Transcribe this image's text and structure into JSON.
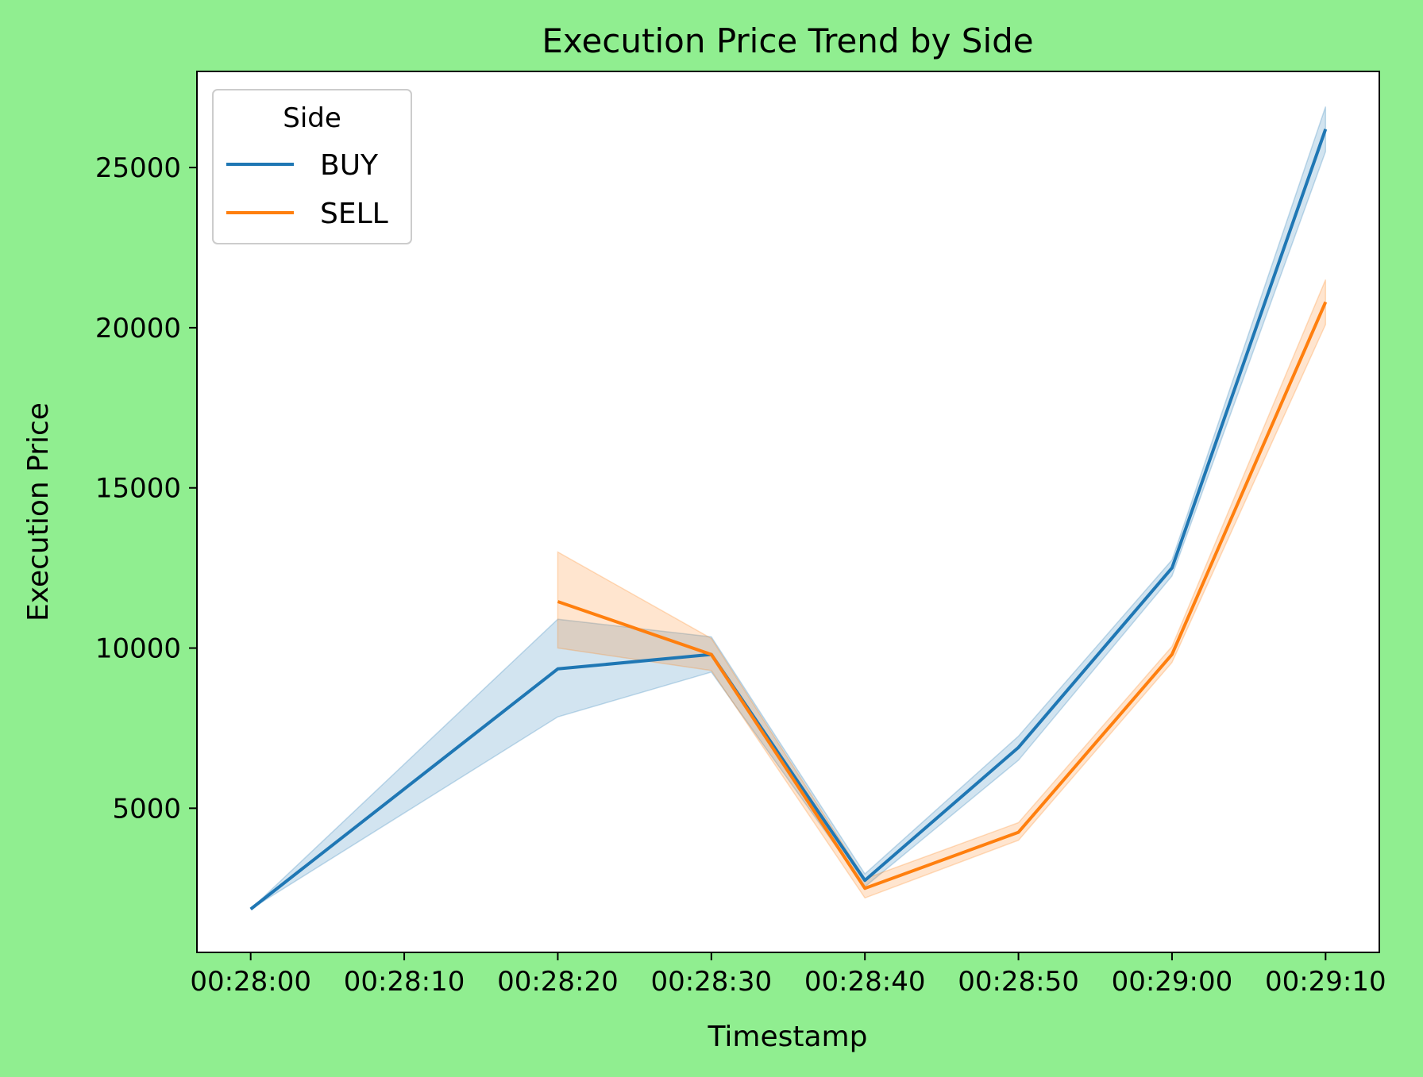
{
  "chart_data": {
    "type": "line",
    "title": "Execution Price Trend by Side",
    "xlabel": "Timestamp",
    "ylabel": "Execution Price",
    "x_ticks": [
      "00:28:00",
      "00:28:10",
      "00:28:20",
      "00:28:30",
      "00:28:40",
      "00:28:50",
      "00:29:00",
      "00:29:10"
    ],
    "y_ticks": [
      5000,
      10000,
      15000,
      20000,
      25000
    ],
    "xlim": [
      "00:27:56.5",
      "00:29:13.5"
    ],
    "ylim": [
      500,
      28000
    ],
    "grid": false,
    "legend": {
      "title": "Side",
      "position": "top-left"
    },
    "series": [
      {
        "name": "BUY",
        "color": "#1f77b4",
        "x": [
          "00:28:00",
          "00:28:20",
          "00:28:30",
          "00:28:40",
          "00:28:50",
          "00:29:00",
          "00:29:10"
        ],
        "y": [
          1850,
          9350,
          9800,
          2750,
          6900,
          12500,
          26200
        ],
        "ci_low": [
          1850,
          7850,
          9250,
          2550,
          6500,
          12250,
          25500
        ],
        "ci_high": [
          1850,
          10900,
          10350,
          2950,
          7250,
          12750,
          26900
        ]
      },
      {
        "name": "SELL",
        "color": "#ff7f0e",
        "x": [
          "00:28:20",
          "00:28:30",
          "00:28:40",
          "00:28:50",
          "00:29:00",
          "00:29:10"
        ],
        "y": [
          11450,
          9800,
          2500,
          4250,
          9800,
          20800
        ],
        "ci_low": [
          10000,
          9300,
          2200,
          4000,
          9550,
          20100
        ],
        "ci_high": [
          13000,
          10300,
          2800,
          4550,
          10050,
          21500
        ]
      }
    ]
  }
}
